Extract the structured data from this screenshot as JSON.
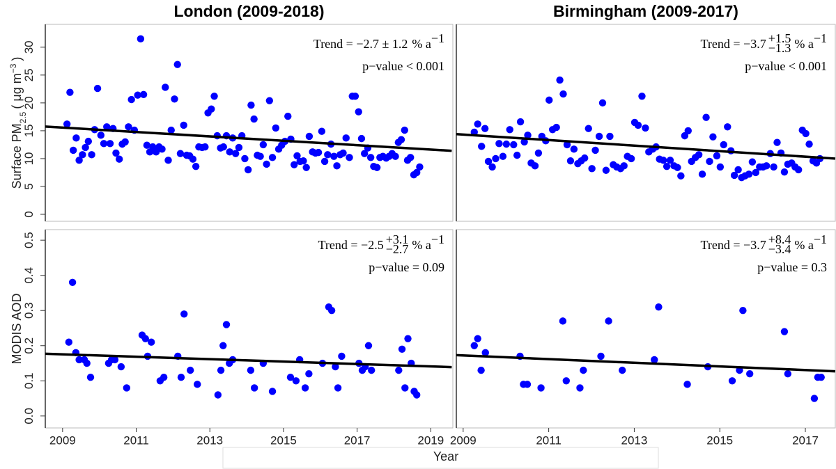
{
  "x_label": "Year",
  "chart_data": [
    {
      "type": "scatter",
      "title": "London (2009-2018)",
      "color": "#0000ff",
      "line_color": "#000000",
      "y_label": {
        "text": "Surface PM",
        "sub": "2.5",
        "unit": "( μg m",
        "sup": "−3",
        "end": ")"
      },
      "trend": {
        "text": "Trend = −2.7 ± 1.2",
        "unit": "% a",
        "sup": "−1"
      },
      "p_value": "p−value < 0.001",
      "xlim": [
        2008.53,
        2019.6
      ],
      "ylim": [
        -1.25,
        34.1
      ],
      "yticks": [
        0,
        5,
        10,
        15,
        20,
        25,
        30
      ],
      "x": [
        2009.12,
        2009.2,
        2009.29,
        2009.37,
        2009.45,
        2009.54,
        2009.62,
        2009.7,
        2009.79,
        2009.87,
        2009.95,
        2010.04,
        2010.12,
        2010.2,
        2010.29,
        2010.37,
        2010.45,
        2010.54,
        2010.62,
        2010.7,
        2010.79,
        2010.87,
        2010.95,
        2011.04,
        2011.12,
        2011.2,
        2011.29,
        2011.37,
        2011.45,
        2011.54,
        2011.62,
        2011.7,
        2011.79,
        2011.87,
        2011.95,
        2012.04,
        2012.12,
        2012.2,
        2012.29,
        2012.37,
        2012.45,
        2012.54,
        2012.62,
        2012.7,
        2012.79,
        2012.87,
        2012.95,
        2013.04,
        2013.12,
        2013.2,
        2013.29,
        2013.37,
        2013.45,
        2013.54,
        2013.62,
        2013.7,
        2013.79,
        2013.87,
        2013.95,
        2014.04,
        2014.12,
        2014.2,
        2014.29,
        2014.37,
        2014.45,
        2014.54,
        2014.62,
        2014.7,
        2014.79,
        2014.87,
        2014.95,
        2015.04,
        2015.12,
        2015.2,
        2015.29,
        2015.37,
        2015.45,
        2015.54,
        2015.62,
        2015.7,
        2015.79,
        2015.87,
        2015.95,
        2016.04,
        2016.12,
        2016.2,
        2016.29,
        2016.37,
        2016.45,
        2016.54,
        2016.62,
        2016.7,
        2016.79,
        2016.87,
        2016.95,
        2017.04,
        2017.12,
        2017.2,
        2017.29,
        2017.37,
        2017.45,
        2017.54,
        2017.62,
        2017.7,
        2017.79,
        2017.87,
        2017.95,
        2018.04,
        2018.12,
        2018.2,
        2018.29,
        2018.37,
        2018.45,
        2018.54,
        2018.62,
        2018.7
      ],
      "values": [
        16.2,
        21.9,
        11.5,
        13.7,
        9.7,
        10.7,
        12,
        13.1,
        10.7,
        15.2,
        22.6,
        14.2,
        12.7,
        15.7,
        12.7,
        15.4,
        11,
        9.9,
        12.6,
        13,
        15.7,
        20.6,
        15.1,
        21.4,
        31.5,
        21.5,
        12.4,
        11.2,
        12.1,
        11.2,
        12.1,
        11.7,
        22.8,
        9.7,
        15.1,
        20.7,
        26.9,
        10.9,
        16,
        10.6,
        10.5,
        9.9,
        8.6,
        12.1,
        12,
        12.1,
        18.2,
        18.9,
        21.2,
        14.1,
        11.9,
        12.1,
        14.1,
        11.2,
        13.7,
        10.9,
        12,
        14.1,
        10,
        8,
        19.6,
        17.1,
        10.6,
        10.4,
        12.5,
        9,
        20.4,
        10.2,
        15.5,
        11.7,
        12.4,
        13.1,
        17.6,
        13.5,
        8.9,
        10.5,
        9.5,
        9.6,
        8.4,
        14,
        11.2,
        11,
        11.1,
        14.9,
        9.5,
        10.7,
        12.6,
        10.4,
        8.7,
        10.7,
        11,
        13.7,
        10.2,
        21.2,
        21.2,
        18.4,
        13.6,
        10.9,
        11.9,
        10.2,
        8.6,
        8.4,
        10.2,
        10.4,
        10.1,
        10.4,
        10.9,
        10.4,
        12.9,
        13.4,
        15.1,
        9.7,
        10.2,
        7.1,
        7.5,
        8.5
      ],
      "trend_line": {
        "x": [
          2008.53,
          2019.57
        ],
        "values": [
          15.75,
          11.4
        ]
      }
    },
    {
      "type": "scatter",
      "title": "Birmingham (2009-2017)",
      "color": "#0000ff",
      "line_color": "#000000",
      "trend": {
        "text": "Trend = −3.7",
        "upper": "+1.5",
        "lower": "−1.3",
        "unit": "% a",
        "sup": "−1"
      },
      "p_value": "p−value < 0.001",
      "xlim": [
        2008.84,
        2017.7
      ],
      "ylim": [
        -1.25,
        34.1
      ],
      "x": [
        2009.26,
        2009.34,
        2009.43,
        2009.51,
        2009.59,
        2009.68,
        2009.76,
        2009.84,
        2009.93,
        2010.01,
        2010.09,
        2010.18,
        2010.26,
        2010.34,
        2010.43,
        2010.51,
        2010.59,
        2010.68,
        2010.76,
        2010.84,
        2010.93,
        2011.01,
        2011.09,
        2011.18,
        2011.26,
        2011.34,
        2011.43,
        2011.51,
        2011.59,
        2011.68,
        2011.76,
        2011.84,
        2011.93,
        2012.01,
        2012.09,
        2012.18,
        2012.26,
        2012.34,
        2012.43,
        2012.51,
        2012.59,
        2012.68,
        2012.76,
        2012.84,
        2012.93,
        2013.01,
        2013.09,
        2013.18,
        2013.26,
        2013.34,
        2013.43,
        2013.51,
        2013.59,
        2013.68,
        2013.76,
        2013.84,
        2013.93,
        2014.01,
        2014.09,
        2014.18,
        2014.26,
        2014.34,
        2014.43,
        2014.51,
        2014.59,
        2014.68,
        2014.76,
        2014.84,
        2014.93,
        2015.01,
        2015.09,
        2015.18,
        2015.26,
        2015.34,
        2015.43,
        2015.51,
        2015.59,
        2015.68,
        2015.76,
        2015.84,
        2015.93,
        2016.01,
        2016.09,
        2016.18,
        2016.26,
        2016.34,
        2016.43,
        2016.51,
        2016.59,
        2016.68,
        2016.76,
        2016.84,
        2016.93,
        2017.01,
        2017.09,
        2017.18,
        2017.26,
        2017.34
      ],
      "values": [
        14.75,
        16.2,
        12.2,
        15.4,
        9.5,
        8.5,
        10,
        12.7,
        10.4,
        12.6,
        15.2,
        12.5,
        10.6,
        16.6,
        13,
        14.2,
        9.2,
        8.7,
        11,
        14,
        13.2,
        20.5,
        15.2,
        15.6,
        24.1,
        21.6,
        12.5,
        9.6,
        11.7,
        9.1,
        9.6,
        10.1,
        15.4,
        8.2,
        11.5,
        14,
        20,
        7.9,
        14,
        8.9,
        8.5,
        8.2,
        8.7,
        10.4,
        10,
        16.5,
        16,
        21.2,
        15.5,
        11.2,
        11.7,
        12.1,
        9.9,
        9.7,
        8.6,
        9.7,
        8.7,
        8.4,
        6.9,
        14.1,
        15,
        9.5,
        10.2,
        10.7,
        7.2,
        17.4,
        9.5,
        13.9,
        10.5,
        8.5,
        12.5,
        15.7,
        11.4,
        7,
        8,
        6.6,
        6.9,
        7.2,
        9.4,
        7.5,
        8.5,
        8.5,
        8.7,
        10.9,
        8.5,
        12.9,
        11,
        7.6,
        9,
        9.2,
        8.5,
        8,
        15.1,
        14.5,
        12.6,
        9.6,
        9.2,
        10
      ],
      "trend_line": {
        "x": [
          2008.84,
          2017.7
        ],
        "values": [
          14.4,
          10
        ]
      }
    },
    {
      "type": "scatter",
      "y_label": {
        "text": "MODIS AOD"
      },
      "color": "#0000ff",
      "line_color": "#000000",
      "trend": {
        "text": "Trend = −2.5",
        "upper": "+3.1",
        "lower": "−2.7",
        "unit": "% a",
        "sup": "−1"
      },
      "p_value": "p−value = 0.09",
      "xlim": [
        2008.53,
        2019.6
      ],
      "xticks": [
        2009,
        2011,
        2013,
        2015,
        2017,
        2019
      ],
      "ylim": [
        -0.034,
        0.53
      ],
      "yticks": [
        {
          "value": 0,
          "label": "0.0"
        },
        0.1,
        0.2,
        0.3,
        0.4,
        0.5
      ],
      "x": [
        2009.17,
        2009.27,
        2009.36,
        2009.45,
        2009.59,
        2009.66,
        2009.76,
        2010.25,
        2010.33,
        2010.42,
        2010.59,
        2010.74,
        2011.16,
        2011.25,
        2011.31,
        2011.41,
        2011.65,
        2011.75,
        2012.13,
        2012.22,
        2012.3,
        2012.47,
        2012.66,
        2013.22,
        2013.3,
        2013.36,
        2013.45,
        2013.53,
        2013.62,
        2014.11,
        2014.21,
        2014.45,
        2014.7,
        2015.19,
        2015.34,
        2015.44,
        2015.59,
        2015.69,
        2016.06,
        2016.23,
        2016.31,
        2016.41,
        2016.48,
        2016.58,
        2017.05,
        2017.14,
        2017.22,
        2017.31,
        2017.39,
        2018.13,
        2018.22,
        2018.3,
        2018.38,
        2018.47,
        2018.55,
        2018.62
      ],
      "values": [
        0.21,
        0.38,
        0.18,
        0.16,
        0.16,
        0.15,
        0.11,
        0.15,
        0.16,
        0.16,
        0.14,
        0.08,
        0.23,
        0.22,
        0.17,
        0.21,
        0.1,
        0.11,
        0.17,
        0.11,
        0.29,
        0.13,
        0.09,
        0.06,
        0.13,
        0.2,
        0.26,
        0.15,
        0.16,
        0.13,
        0.08,
        0.15,
        0.07,
        0.11,
        0.1,
        0.16,
        0.08,
        0.12,
        0.15,
        0.31,
        0.3,
        0.14,
        0.08,
        0.17,
        0.15,
        0.13,
        0.14,
        0.2,
        0.13,
        0.13,
        0.19,
        0.08,
        0.22,
        0.15,
        0.07,
        0.06
      ],
      "trend_line": {
        "x": [
          2008.53,
          2019.57
        ],
        "values": [
          0.177,
          0.139
        ]
      }
    },
    {
      "type": "scatter",
      "color": "#0000ff",
      "line_color": "#000000",
      "trend": {
        "text": "Trend = −3.7",
        "upper": "+8.4",
        "lower": "−3.4",
        "unit": "% a",
        "sup": "−1"
      },
      "p_value": "p−value = 0.3",
      "xlim": [
        2008.84,
        2017.7
      ],
      "xticks": [
        2009,
        2011,
        2013,
        2015,
        2017
      ],
      "ylim": [
        -0.034,
        0.53
      ],
      "x": [
        2009.26,
        2009.34,
        2009.42,
        2009.52,
        2010.33,
        2010.41,
        2010.5,
        2010.82,
        2011.33,
        2011.41,
        2011.73,
        2011.81,
        2012.22,
        2012.4,
        2012.72,
        2013.47,
        2013.57,
        2014.24,
        2014.72,
        2015.29,
        2015.46,
        2015.54,
        2015.7,
        2016.51,
        2016.59,
        2017.21,
        2017.29,
        2017.37
      ],
      "values": [
        0.2,
        0.22,
        0.13,
        0.18,
        0.17,
        0.09,
        0.09,
        0.08,
        0.27,
        0.1,
        0.08,
        0.13,
        0.17,
        0.27,
        0.13,
        0.16,
        0.31,
        0.09,
        0.14,
        0.1,
        0.13,
        0.3,
        0.12,
        0.24,
        0.12,
        0.05,
        0.11,
        0.11
      ],
      "trend_line": {
        "x": [
          2008.84,
          2017.7
        ],
        "values": [
          0.173,
          0.127
        ]
      }
    }
  ]
}
